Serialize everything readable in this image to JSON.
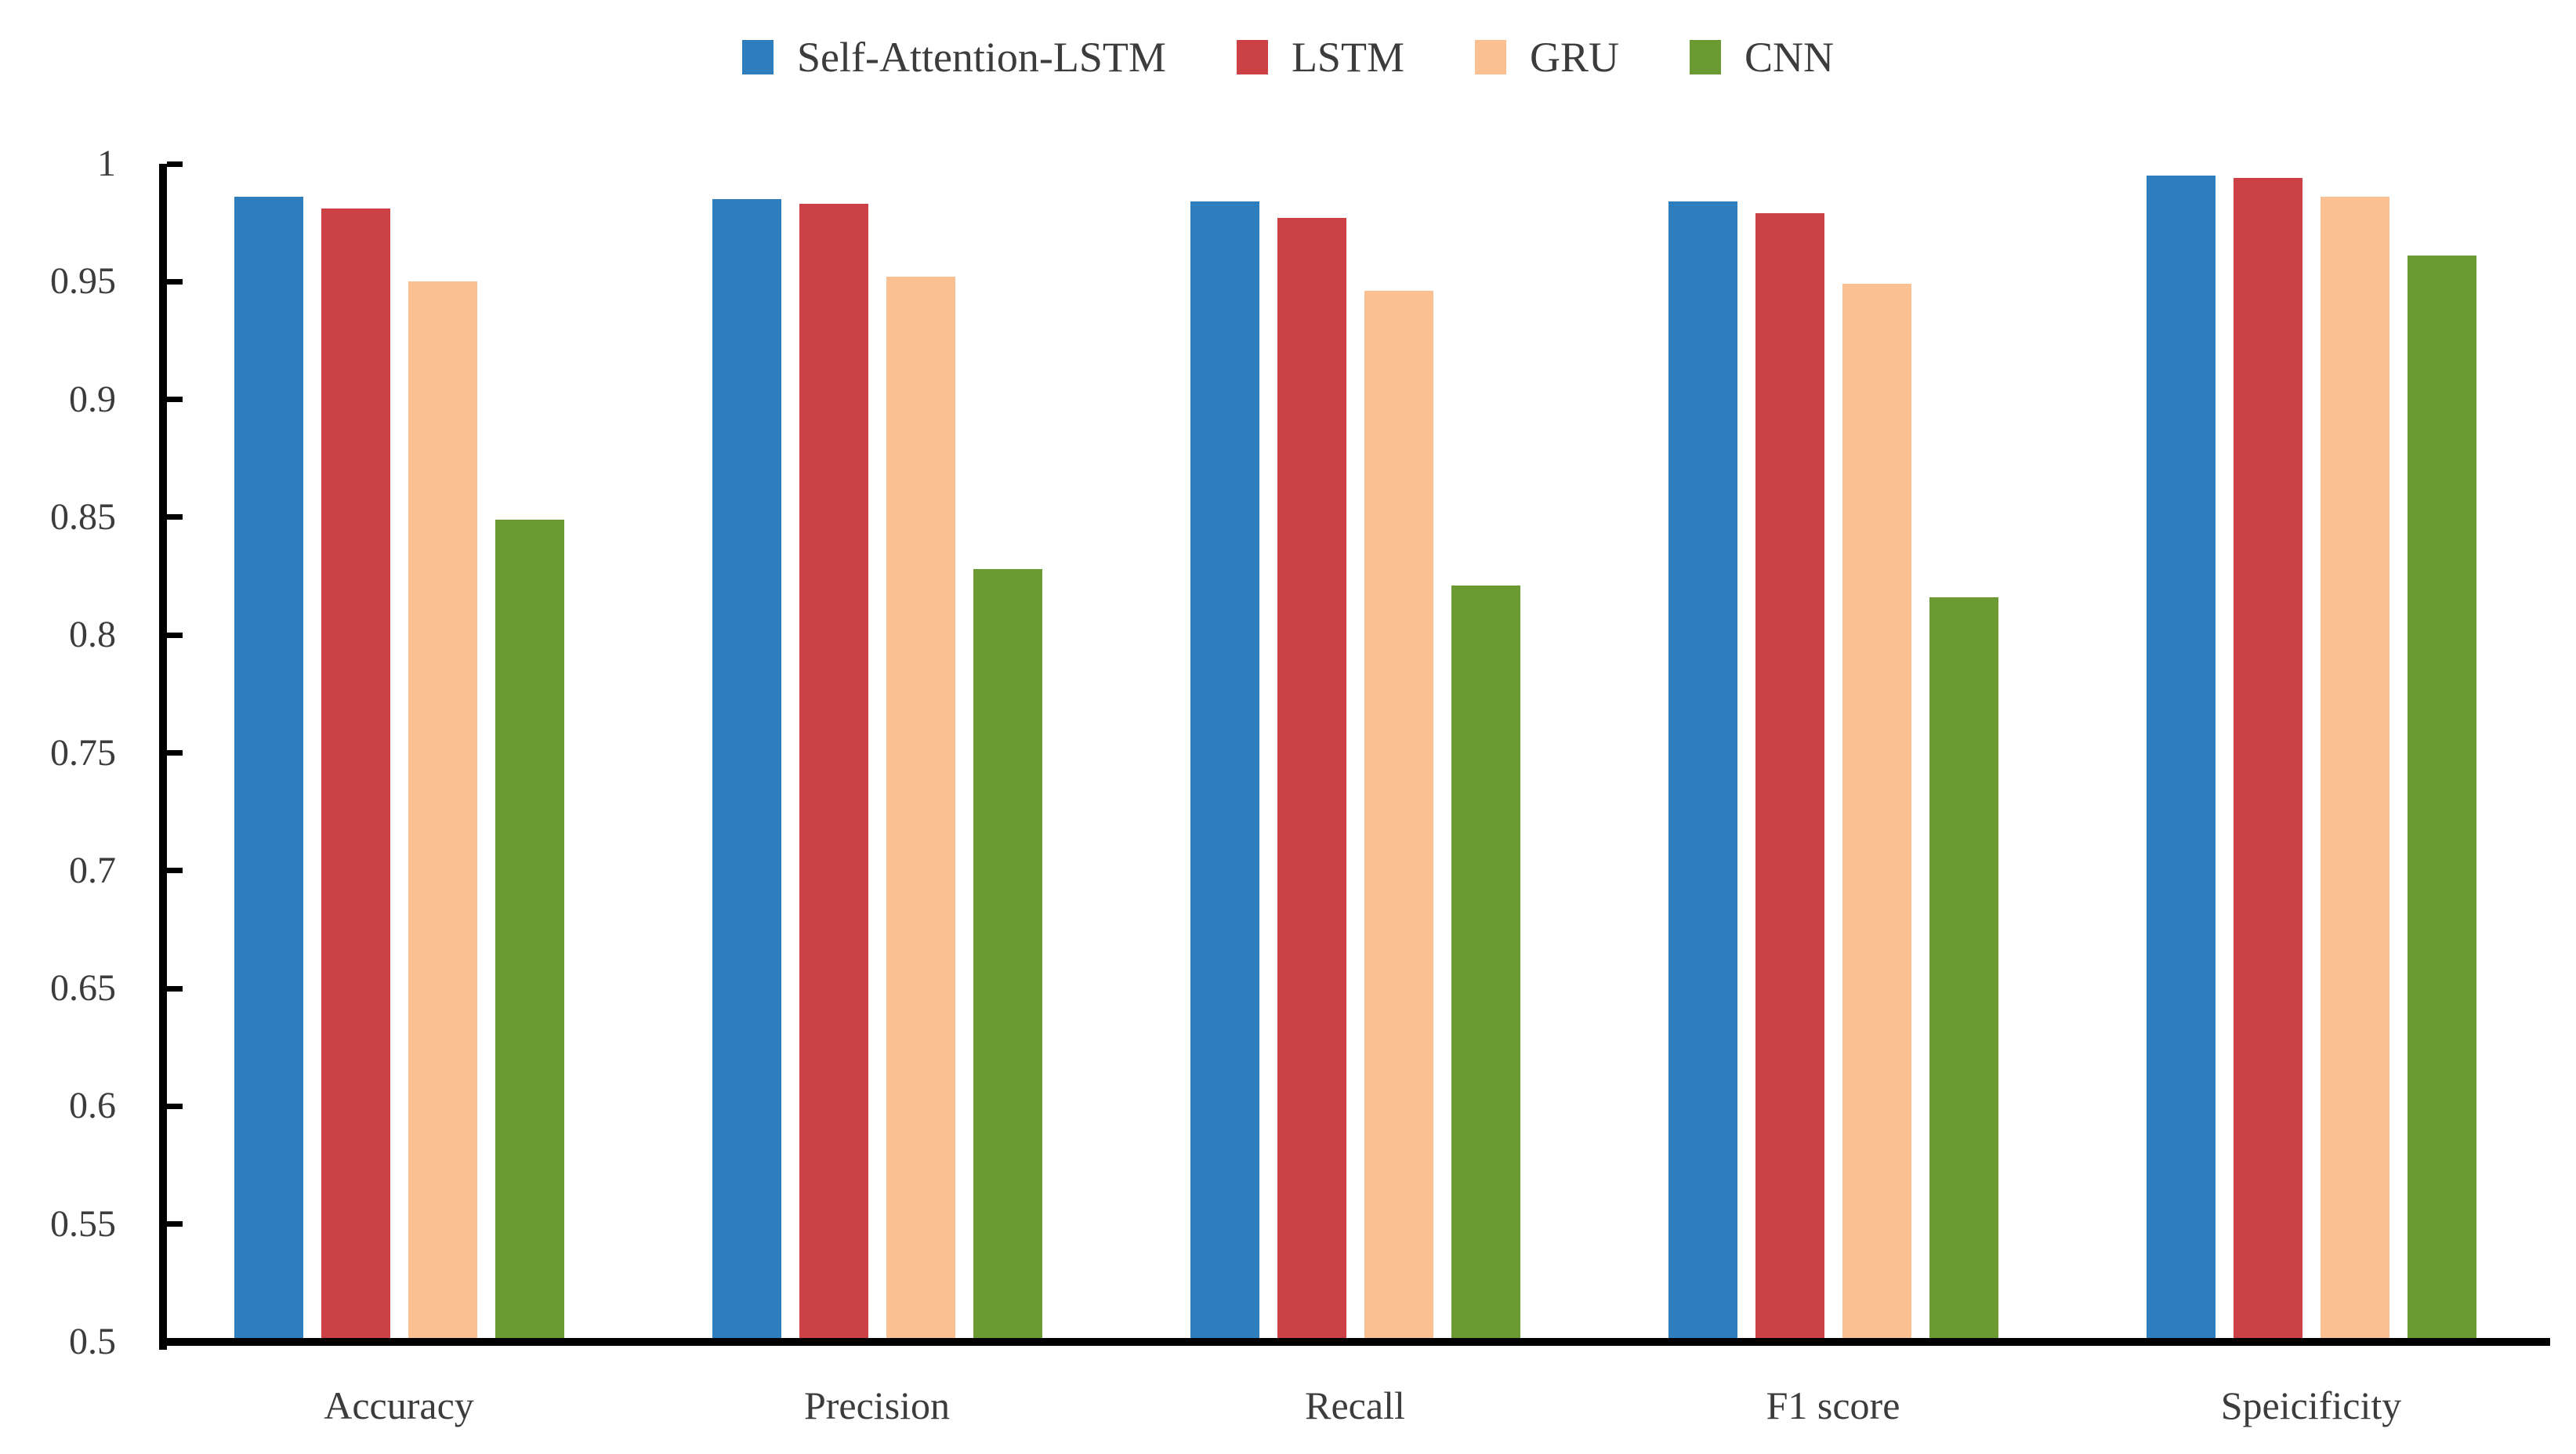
{
  "chart_data": {
    "type": "bar",
    "title": "",
    "categories": [
      "Accuracy",
      "Precision",
      "Recall",
      "F1 score",
      "Speicificity"
    ],
    "series": [
      {
        "name": "Self-Attention-LSTM",
        "color": "#2E7DBD",
        "values": [
          0.986,
          0.985,
          0.984,
          0.984,
          0.995
        ]
      },
      {
        "name": "LSTM",
        "color": "#CC4146",
        "values": [
          0.981,
          0.983,
          0.977,
          0.979,
          0.994
        ]
      },
      {
        "name": "GRU",
        "color": "#FAC092",
        "values": [
          0.95,
          0.952,
          0.946,
          0.949,
          0.986
        ]
      },
      {
        "name": "CNN",
        "color": "#6A9A31",
        "values": [
          0.849,
          0.828,
          0.821,
          0.816,
          0.961
        ]
      }
    ],
    "ylim": [
      0.5,
      1.0
    ],
    "yticks": [
      {
        "value": 1.0,
        "label": "1"
      },
      {
        "value": 0.95,
        "label": "0.95"
      },
      {
        "value": 0.9,
        "label": "0.9"
      },
      {
        "value": 0.85,
        "label": "0.85"
      },
      {
        "value": 0.8,
        "label": "0.8"
      },
      {
        "value": 0.75,
        "label": "0.75"
      },
      {
        "value": 0.7,
        "label": "0.7"
      },
      {
        "value": 0.65,
        "label": "0.65"
      },
      {
        "value": 0.6,
        "label": "0.6"
      },
      {
        "value": 0.55,
        "label": "0.55"
      },
      {
        "value": 0.5,
        "label": "0.5"
      }
    ],
    "xlabel": "",
    "ylabel": "",
    "grid": false,
    "legend_position": "top-center",
    "axis_color": "#000000",
    "label_color": "#3C3C3C"
  }
}
